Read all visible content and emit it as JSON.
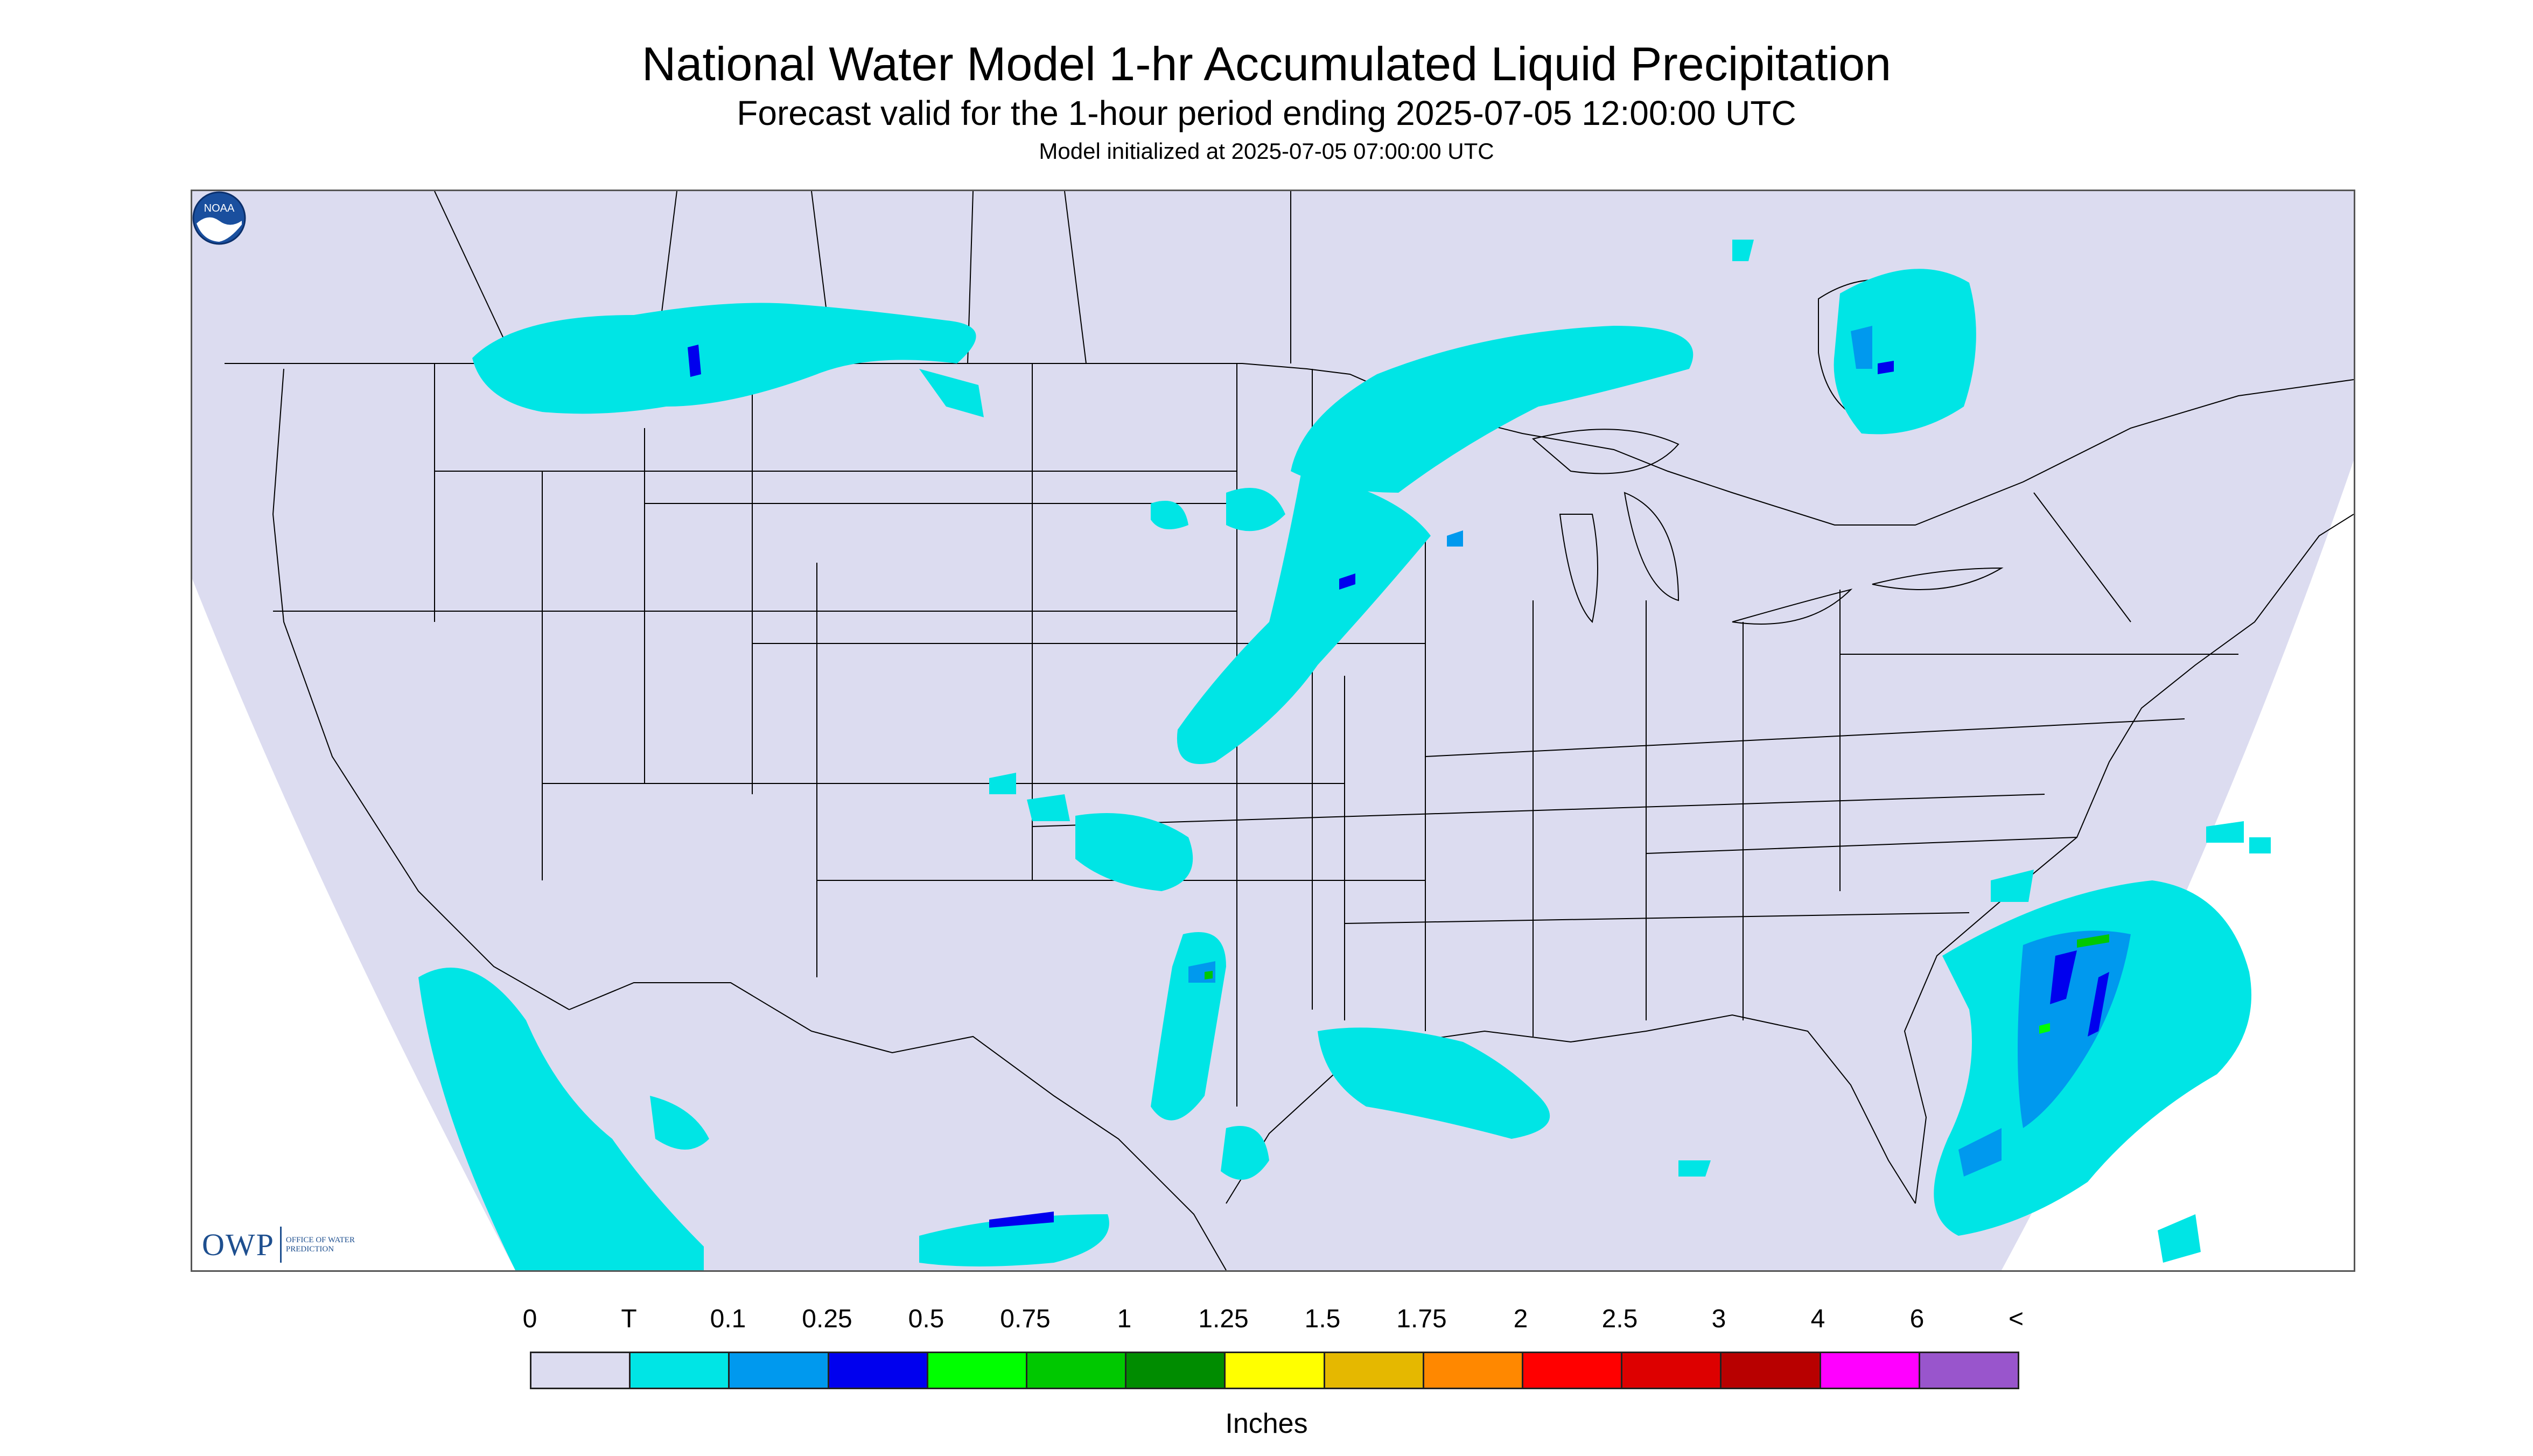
{
  "title": "National Water Model 1-hr Accumulated Liquid Precipitation",
  "subtitle": "Forecast valid for the 1-hour period ending 2025-07-05 12:00:00 UTC",
  "init": "Model initialized at 2025-07-05 07:00:00 UTC",
  "logos": {
    "owp_mark": "OWP",
    "owp_words": "OFFICE OF WATER PREDICTION",
    "noaa_icon": "noaa-logo-icon",
    "noaa_text": "NOAA"
  },
  "colors": {
    "domain_fill": "#dcdcf0",
    "light_rain": "#00e5e5",
    "moderate": "#0099ee",
    "heavy": "#0000ee",
    "boundary": "#000000"
  },
  "legend": {
    "units": "Inches",
    "labels": [
      "0",
      "T",
      "0.1",
      "0.25",
      "0.5",
      "0.75",
      "1",
      "1.25",
      "1.5",
      "1.75",
      "2",
      "2.5",
      "3",
      "4",
      "6",
      "<"
    ],
    "colors": [
      "#dcdcf0",
      "#00e5e5",
      "#0099ee",
      "#0000ee",
      "#00ff00",
      "#00c800",
      "#008c00",
      "#ffff00",
      "#e5b800",
      "#ff8800",
      "#ff0000",
      "#dd0000",
      "#b80000",
      "#ff00ff",
      "#9955cc"
    ]
  }
}
